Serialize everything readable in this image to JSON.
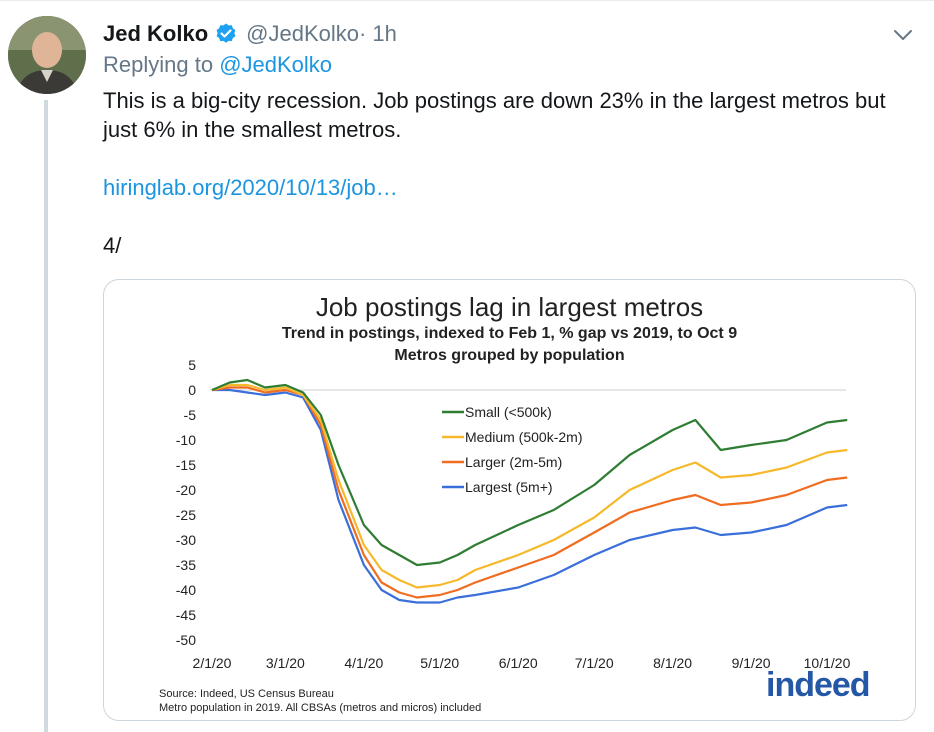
{
  "tweet": {
    "author_name": "Jed Kolko",
    "handle": "@JedKolko",
    "time": " · 1h",
    "reply_prefix": "Replying to ",
    "reply_to": "@JedKolko",
    "text": "This is a big-city recession. Job postings are down 23% in the largest metros but just 6% in the smallest metros.",
    "link": "hiringlab.org/2020/10/13/job…",
    "footer": "4/"
  },
  "colors": {
    "link": "#1b95e0",
    "verified": "#1da1f2",
    "small": "#2e7d32",
    "medium": "#f6b92b",
    "larger": "#ef6c20",
    "largest": "#3a6fdb"
  },
  "icons": {
    "verified": "verified-badge-icon",
    "menu": "chevron-down-icon"
  },
  "card": {
    "source_line1": "Source: Indeed, US Census Bureau",
    "source_line2": "Metro population in 2019. All CBSAs (metros and micros) included",
    "logo": "indeed"
  },
  "chart_data": {
    "type": "line",
    "title": "Job postings lag in largest metros",
    "subtitle1": "Trend in postings, indexed to Feb 1, % gap vs 2019, to Oct 9",
    "subtitle2": "Metros grouped by population",
    "xlabel": "",
    "ylabel": "",
    "ylim": [
      -50,
      5
    ],
    "yticks": [
      "5",
      "0",
      "-5",
      "-10",
      "-15",
      "-20",
      "-25",
      "-30",
      "-35",
      "-40",
      "-45",
      "-50"
    ],
    "xticks": [
      "2/1/20",
      "3/1/20",
      "4/1/20",
      "5/1/20",
      "6/1/20",
      "7/1/20",
      "8/1/20",
      "9/1/20",
      "10/1/20"
    ],
    "grid": "horizontal line at 0",
    "legend_position": "center",
    "series": [
      {
        "name": "Small (<500k)",
        "color": "#2e7d32",
        "x": [
          "2/1/20",
          "2/8/20",
          "2/15/20",
          "2/22/20",
          "3/1/20",
          "3/8/20",
          "3/15/20",
          "3/22/20",
          "4/1/20",
          "4/8/20",
          "4/15/20",
          "4/22/20",
          "5/1/20",
          "5/8/20",
          "5/15/20",
          "6/1/20",
          "6/15/20",
          "7/1/20",
          "7/15/20",
          "8/1/20",
          "8/10/20",
          "8/20/20",
          "9/1/20",
          "9/15/20",
          "10/1/20",
          "10/9/20"
        ],
        "values": [
          0,
          1.5,
          2,
          0.5,
          1,
          -0.5,
          -5,
          -15,
          -27,
          -31,
          -33,
          -35,
          -34.5,
          -33,
          -31,
          -27,
          -24,
          -19,
          -13,
          -8,
          -6,
          -12,
          -11,
          -10,
          -6.5,
          -6
        ]
      },
      {
        "name": "Medium (500k-2m)",
        "color": "#f6b92b",
        "x": [
          "2/1/20",
          "2/8/20",
          "2/15/20",
          "2/22/20",
          "3/1/20",
          "3/8/20",
          "3/15/20",
          "3/22/20",
          "4/1/20",
          "4/8/20",
          "4/15/20",
          "4/22/20",
          "5/1/20",
          "5/8/20",
          "5/15/20",
          "6/1/20",
          "6/15/20",
          "7/1/20",
          "7/15/20",
          "8/1/20",
          "8/10/20",
          "8/20/20",
          "9/1/20",
          "9/15/20",
          "10/1/20",
          "10/9/20"
        ],
        "values": [
          0,
          1,
          1,
          0,
          0.5,
          -1,
          -6,
          -18,
          -31,
          -36,
          -38,
          -39.5,
          -39,
          -38,
          -36,
          -33,
          -30,
          -25.5,
          -20,
          -16,
          -14.5,
          -17.5,
          -17,
          -15.5,
          -12.5,
          -12
        ]
      },
      {
        "name": "Larger (2m-5m)",
        "color": "#ef6c20",
        "x": [
          "2/1/20",
          "2/8/20",
          "2/15/20",
          "2/22/20",
          "3/1/20",
          "3/8/20",
          "3/15/20",
          "3/22/20",
          "4/1/20",
          "4/8/20",
          "4/15/20",
          "4/22/20",
          "5/1/20",
          "5/8/20",
          "5/15/20",
          "6/1/20",
          "6/15/20",
          "7/1/20",
          "7/15/20",
          "8/1/20",
          "8/10/20",
          "8/20/20",
          "9/1/20",
          "9/15/20",
          "10/1/20",
          "10/9/20"
        ],
        "values": [
          0,
          0.5,
          0.5,
          -0.5,
          0,
          -1,
          -7,
          -20,
          -33,
          -38.5,
          -40.5,
          -41.5,
          -41,
          -40,
          -38.5,
          -35.5,
          -33,
          -28.5,
          -24.5,
          -22,
          -21,
          -23,
          -22.5,
          -21,
          -18,
          -17.5
        ]
      },
      {
        "name": "Largest (5m+)",
        "color": "#3a6fdb",
        "x": [
          "2/1/20",
          "2/8/20",
          "2/15/20",
          "2/22/20",
          "3/1/20",
          "3/8/20",
          "3/15/20",
          "3/22/20",
          "4/1/20",
          "4/8/20",
          "4/15/20",
          "4/22/20",
          "5/1/20",
          "5/8/20",
          "5/15/20",
          "6/1/20",
          "6/15/20",
          "7/1/20",
          "7/15/20",
          "8/1/20",
          "8/10/20",
          "8/20/20",
          "9/1/20",
          "9/15/20",
          "10/1/20",
          "10/9/20"
        ],
        "values": [
          0,
          0,
          -0.5,
          -1,
          -0.5,
          -1.5,
          -8,
          -22,
          -35,
          -40,
          -42,
          -42.5,
          -42.5,
          -41.5,
          -41,
          -39.5,
          -37,
          -33,
          -30,
          -28,
          -27.5,
          -29,
          -28.5,
          -27,
          -23.5,
          -23
        ]
      }
    ]
  }
}
